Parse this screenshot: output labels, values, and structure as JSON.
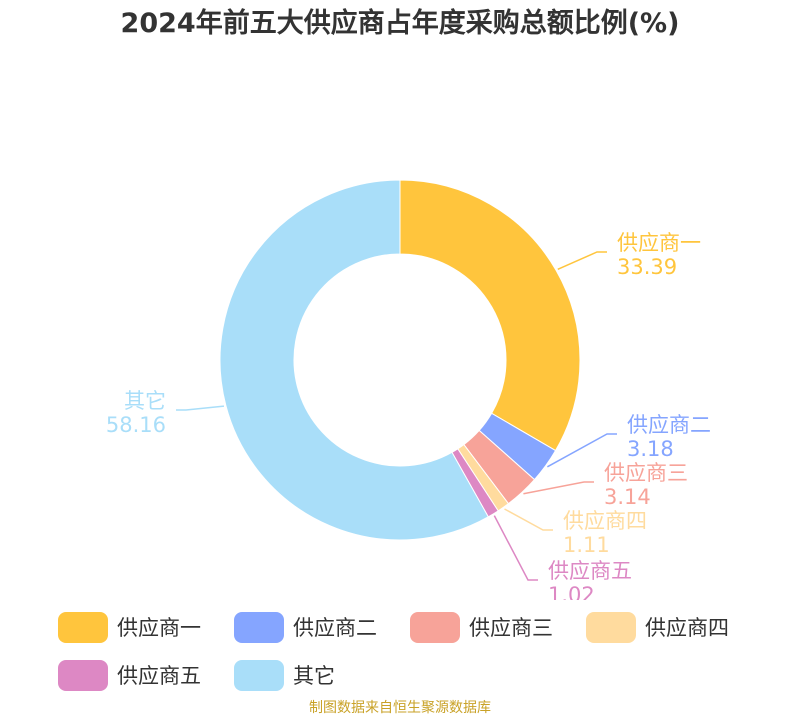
{
  "chart_data": {
    "type": "pie",
    "title": "2024年前五大供应商占年度采购总额比例(%)",
    "categories": [
      "供应商一",
      "供应商二",
      "供应商三",
      "供应商四",
      "供应商五",
      "其它"
    ],
    "values": [
      33.39,
      3.18,
      3.14,
      1.11,
      1.02,
      58.16
    ],
    "value_labels": [
      "33.39",
      "3.18",
      "3.14",
      "1.11",
      "1.02",
      "58.16"
    ],
    "colors": [
      "#FFC53D",
      "#85A5FF",
      "#F7A399",
      "#FFDB9E",
      "#DD88C4",
      "#A9DEF9"
    ],
    "donut": true,
    "legend": "bottom"
  },
  "source": "制图数据来自恒生聚源数据库"
}
